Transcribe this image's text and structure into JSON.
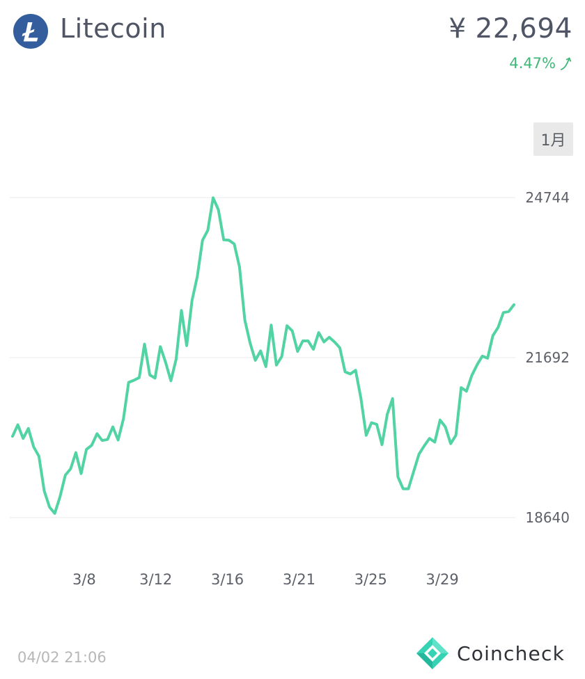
{
  "coin": {
    "name": "Litecoin",
    "logo_icon": "litecoin-icon",
    "price": "¥ 22,694",
    "change": "4.47%",
    "change_icon": "trend-up-arrow-icon",
    "colors": {
      "logo": "#345d9d",
      "up": "#3fb877"
    }
  },
  "period_button": {
    "label": "1月"
  },
  "footer": {
    "timestamp": "04/02 21:06",
    "brand_name": "Coincheck",
    "brand_icon": "coincheck-diamond-icon"
  },
  "chart_data": {
    "type": "line",
    "line_color": "#52d3a4",
    "grid": true,
    "y_axis_position": "right",
    "y_ticks": [
      24744,
      21692,
      18640
    ],
    "ylim": [
      18640,
      24744
    ],
    "x_tick_labels": [
      "3/8",
      "3/12",
      "3/16",
      "3/21",
      "3/25",
      "3/29"
    ],
    "x_tick_positions": [
      4,
      8,
      12,
      16,
      20,
      24
    ],
    "xlim": [
      0,
      28
    ],
    "series": [
      {
        "values": [
          20190,
          20410,
          20150,
          20340,
          19990,
          19810,
          19150,
          18840,
          18720,
          19040,
          19450,
          19570,
          19880,
          19480,
          19940,
          20020,
          20240,
          20110,
          20130,
          20370,
          20120,
          20520,
          21220,
          21260,
          21310,
          21950,
          21360,
          21300,
          21900,
          21600,
          21250,
          21660,
          22590,
          21920,
          22780,
          23240,
          23930,
          24120,
          24740,
          24510,
          23940,
          23930,
          23860,
          23420,
          22410,
          21970,
          21640,
          21820,
          21520,
          22310,
          21550,
          21710,
          22300,
          22200,
          21810,
          22010,
          22010,
          21850,
          22170,
          21990,
          22080,
          21990,
          21880,
          21420,
          21380,
          21450,
          20920,
          20210,
          20450,
          20420,
          20030,
          20610,
          20910,
          19420,
          19190,
          19190,
          19520,
          19850,
          20010,
          20150,
          20080,
          20500,
          20370,
          20050,
          20210,
          21120,
          21050,
          21350,
          21550,
          21720,
          21680,
          22110,
          22270,
          22550,
          22570,
          22700
        ]
      }
    ]
  }
}
